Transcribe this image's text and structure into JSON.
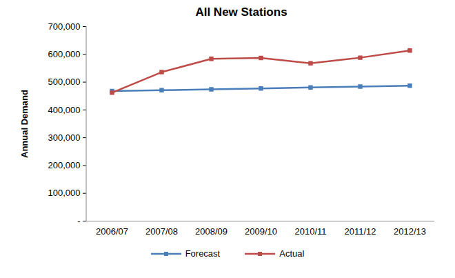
{
  "chart_data": {
    "type": "line",
    "title": "All New Stations",
    "ylabel": "Annual Demand",
    "categories": [
      "2006/07",
      "2007/08",
      "2008/09",
      "2009/10",
      "2010/11",
      "2011/12",
      "2012/13"
    ],
    "series": [
      {
        "name": "Forecast",
        "color": "#4a7ebb",
        "marker": "square",
        "values": [
          468000,
          471000,
          474000,
          477000,
          481000,
          484000,
          487000
        ]
      },
      {
        "name": "Actual",
        "color": "#be4b48",
        "marker": "square",
        "values": [
          462000,
          536000,
          584000,
          587000,
          568000,
          588000,
          614000
        ]
      }
    ],
    "ylim": [
      0,
      700000
    ],
    "yticks": [
      {
        "value": 0,
        "label": "-"
      },
      {
        "value": 100000,
        "label": "100,000"
      },
      {
        "value": 200000,
        "label": "200,000"
      },
      {
        "value": 300000,
        "label": "300,000"
      },
      {
        "value": 400000,
        "label": "400,000"
      },
      {
        "value": 500000,
        "label": "500,000"
      },
      {
        "value": 600000,
        "label": "600,000"
      },
      {
        "value": 700000,
        "label": "700,000"
      }
    ],
    "grid": false,
    "legend": "bottom"
  }
}
